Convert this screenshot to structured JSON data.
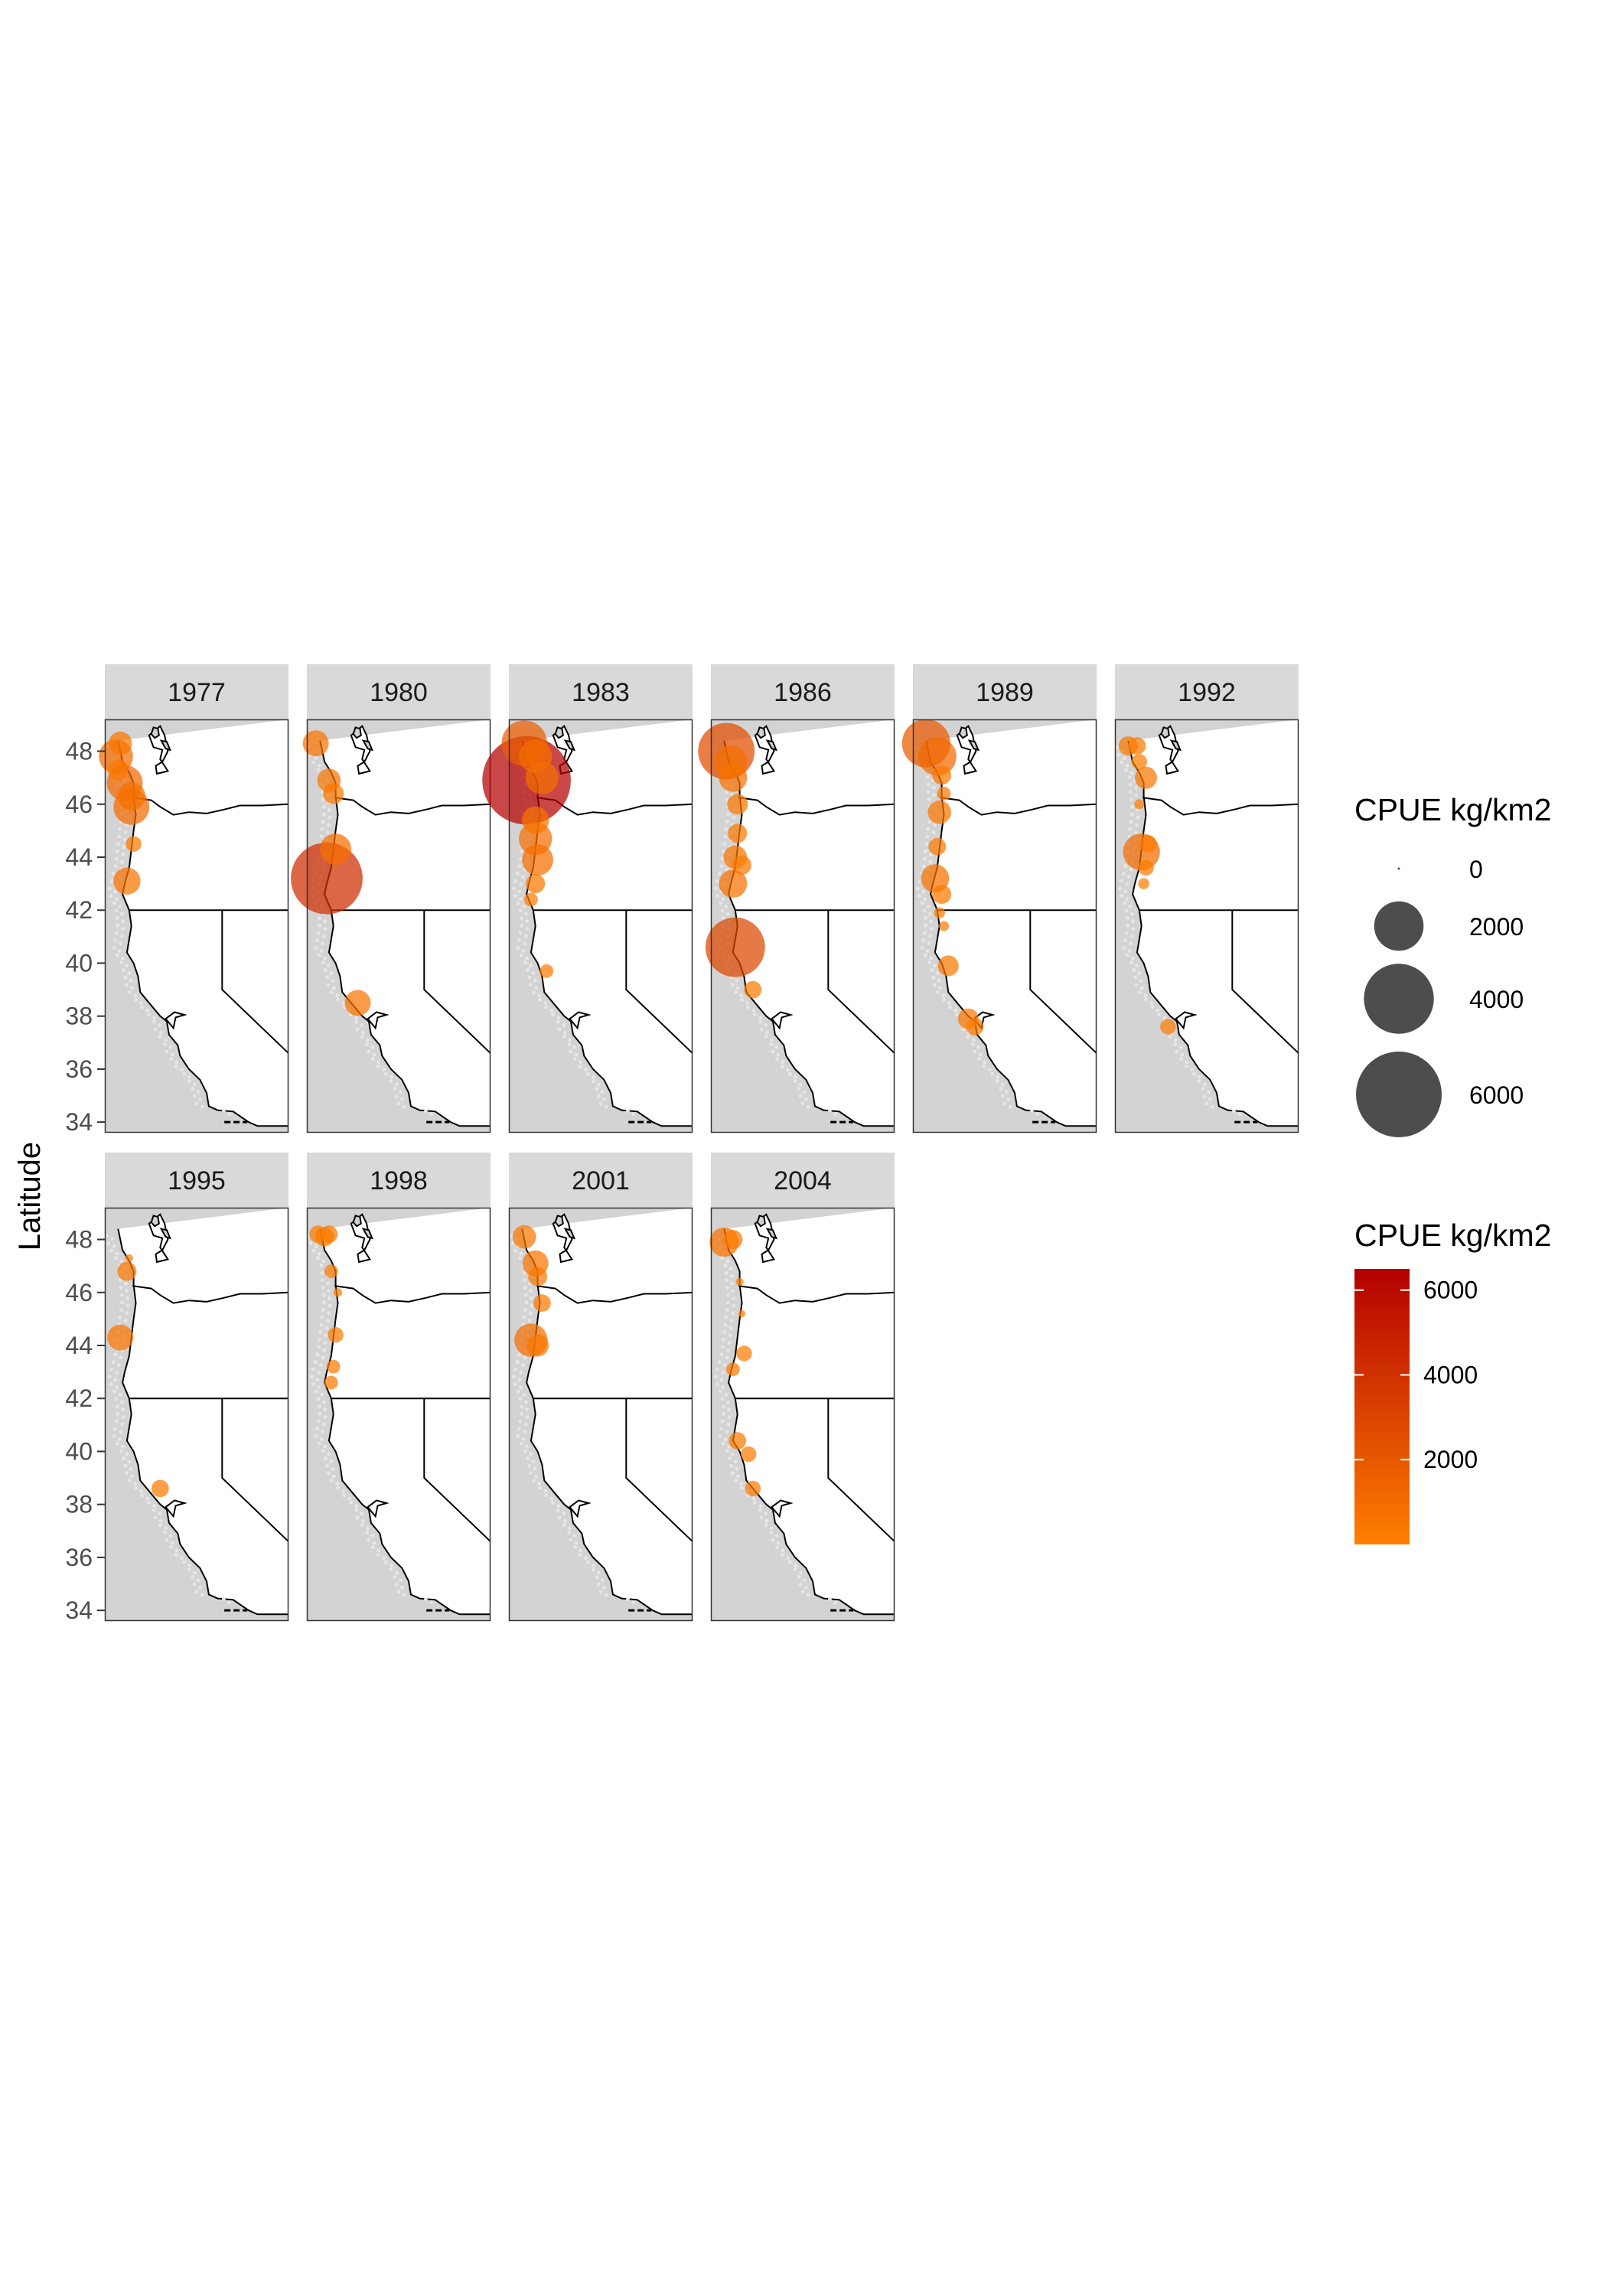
{
  "chart_data": {
    "type": "scatter",
    "subtype": "faceted bubble map",
    "ylabel": "Latitude",
    "xlabel": "",
    "ylim": [
      33.6,
      49.2
    ],
    "yticks": [
      34,
      36,
      38,
      40,
      42,
      44,
      46,
      48
    ],
    "size_legend": {
      "title": "CPUE kg/km2",
      "breaks": [
        0,
        2000,
        4000,
        6000
      ]
    },
    "color_legend": {
      "title": "CPUE kg/km2",
      "breaks": [
        2000,
        4000,
        6000
      ],
      "range": [
        0,
        6500
      ],
      "low_color": "#ff7f00",
      "high_color": "#b30000"
    },
    "panels": [
      {
        "year": "1977",
        "points": [
          {
            "lon": -124.6,
            "lat": 48.3,
            "cpue": 450
          },
          {
            "lon": -124.8,
            "lat": 47.8,
            "cpue": 950
          },
          {
            "lon": -124.7,
            "lat": 47.3,
            "cpue": 350
          },
          {
            "lon": -124.4,
            "lat": 46.8,
            "cpue": 1050
          },
          {
            "lon": -124.1,
            "lat": 46.3,
            "cpue": 650
          },
          {
            "lon": -124.1,
            "lat": 45.9,
            "cpue": 1050
          },
          {
            "lon": -124.0,
            "lat": 44.5,
            "cpue": 200
          },
          {
            "lon": -124.3,
            "lat": 43.1,
            "cpue": 600
          }
        ]
      },
      {
        "year": "1980",
        "points": [
          {
            "lon": -124.9,
            "lat": 48.3,
            "cpue": 550
          },
          {
            "lon": -124.3,
            "lat": 46.9,
            "cpue": 450
          },
          {
            "lon": -124.1,
            "lat": 46.4,
            "cpue": 350
          },
          {
            "lon": -124.0,
            "lat": 44.3,
            "cpue": 800
          },
          {
            "lon": -124.4,
            "lat": 43.2,
            "cpue": 4200
          },
          {
            "lon": -123.0,
            "lat": 38.5,
            "cpue": 550
          }
        ]
      },
      {
        "year": "1983",
        "points": [
          {
            "lon": -124.6,
            "lat": 48.3,
            "cpue": 1700
          },
          {
            "lon": -124.1,
            "lat": 47.8,
            "cpue": 900
          },
          {
            "lon": -124.5,
            "lat": 46.9,
            "cpue": 6400
          },
          {
            "lon": -123.8,
            "lat": 47.0,
            "cpue": 900
          },
          {
            "lon": -124.1,
            "lat": 45.4,
            "cpue": 600
          },
          {
            "lon": -124.1,
            "lat": 44.7,
            "cpue": 900
          },
          {
            "lon": -124.0,
            "lat": 43.9,
            "cpue": 800
          },
          {
            "lon": -124.1,
            "lat": 43.0,
            "cpue": 300
          },
          {
            "lon": -124.3,
            "lat": 42.4,
            "cpue": 150
          },
          {
            "lon": -123.6,
            "lat": 39.7,
            "cpue": 150
          }
        ]
      },
      {
        "year": "1986",
        "points": [
          {
            "lon": -124.6,
            "lat": 48.0,
            "cpue": 2600
          },
          {
            "lon": -124.4,
            "lat": 47.6,
            "cpue": 900
          },
          {
            "lon": -124.3,
            "lat": 47.0,
            "cpue": 650
          },
          {
            "lon": -124.1,
            "lat": 46.0,
            "cpue": 350
          },
          {
            "lon": -124.1,
            "lat": 44.9,
            "cpue": 300
          },
          {
            "lon": -124.2,
            "lat": 44.0,
            "cpue": 450
          },
          {
            "lon": -123.9,
            "lat": 43.7,
            "cpue": 300
          },
          {
            "lon": -124.3,
            "lat": 43.0,
            "cpue": 650
          },
          {
            "lon": -124.2,
            "lat": 40.6,
            "cpue": 2900
          },
          {
            "lon": -123.4,
            "lat": 39.0,
            "cpue": 250
          }
        ]
      },
      {
        "year": "1989",
        "points": [
          {
            "lon": -124.7,
            "lat": 48.3,
            "cpue": 1900
          },
          {
            "lon": -124.2,
            "lat": 47.8,
            "cpue": 1200
          },
          {
            "lon": -124.0,
            "lat": 47.1,
            "cpue": 300
          },
          {
            "lon": -123.9,
            "lat": 46.4,
            "cpue": 150
          },
          {
            "lon": -124.1,
            "lat": 45.7,
            "cpue": 450
          },
          {
            "lon": -124.2,
            "lat": 44.4,
            "cpue": 250
          },
          {
            "lon": -124.3,
            "lat": 43.2,
            "cpue": 650
          },
          {
            "lon": -124.0,
            "lat": 42.6,
            "cpue": 300
          },
          {
            "lon": -124.1,
            "lat": 41.9,
            "cpue": 100
          },
          {
            "lon": -123.9,
            "lat": 41.4,
            "cpue": 80
          },
          {
            "lon": -123.7,
            "lat": 39.9,
            "cpue": 350
          },
          {
            "lon": -122.8,
            "lat": 37.9,
            "cpue": 350
          },
          {
            "lon": -122.5,
            "lat": 37.6,
            "cpue": 250
          }
        ]
      },
      {
        "year": "1992",
        "points": [
          {
            "lon": -124.7,
            "lat": 48.2,
            "cpue": 300
          },
          {
            "lon": -124.3,
            "lat": 48.2,
            "cpue": 250
          },
          {
            "lon": -124.2,
            "lat": 47.6,
            "cpue": 200
          },
          {
            "lon": -123.9,
            "lat": 47.0,
            "cpue": 400
          },
          {
            "lon": -124.2,
            "lat": 46.0,
            "cpue": 80
          },
          {
            "lon": -124.1,
            "lat": 44.2,
            "cpue": 1100
          },
          {
            "lon": -123.8,
            "lat": 44.5,
            "cpue": 250
          },
          {
            "lon": -123.9,
            "lat": 43.6,
            "cpue": 200
          },
          {
            "lon": -124.0,
            "lat": 43.0,
            "cpue": 100
          },
          {
            "lon": -122.9,
            "lat": 37.6,
            "cpue": 200
          }
        ]
      },
      {
        "year": "1995",
        "points": [
          {
            "lon": -124.2,
            "lat": 47.3,
            "cpue": 50
          },
          {
            "lon": -124.3,
            "lat": 46.8,
            "cpue": 300
          },
          {
            "lon": -124.6,
            "lat": 44.3,
            "cpue": 550
          },
          {
            "lon": -122.8,
            "lat": 38.6,
            "cpue": 250
          }
        ]
      },
      {
        "year": "1998",
        "points": [
          {
            "lon": -124.8,
            "lat": 48.2,
            "cpue": 250
          },
          {
            "lon": -124.5,
            "lat": 48.1,
            "cpue": 300
          },
          {
            "lon": -124.3,
            "lat": 48.2,
            "cpue": 250
          },
          {
            "lon": -124.2,
            "lat": 46.8,
            "cpue": 150
          },
          {
            "lon": -123.9,
            "lat": 46.0,
            "cpue": 60
          },
          {
            "lon": -124.0,
            "lat": 44.4,
            "cpue": 200
          },
          {
            "lon": -124.1,
            "lat": 43.2,
            "cpue": 150
          },
          {
            "lon": -124.2,
            "lat": 42.6,
            "cpue": 150
          }
        ]
      },
      {
        "year": "2001",
        "points": [
          {
            "lon": -124.6,
            "lat": 48.1,
            "cpue": 450
          },
          {
            "lon": -124.1,
            "lat": 47.1,
            "cpue": 550
          },
          {
            "lon": -124.0,
            "lat": 46.6,
            "cpue": 300
          },
          {
            "lon": -123.8,
            "lat": 45.6,
            "cpue": 250
          },
          {
            "lon": -124.3,
            "lat": 44.2,
            "cpue": 900
          },
          {
            "lon": -124.0,
            "lat": 44.0,
            "cpue": 400
          }
        ]
      },
      {
        "year": "2004",
        "points": [
          {
            "lon": -124.7,
            "lat": 47.9,
            "cpue": 700
          },
          {
            "lon": -124.3,
            "lat": 48.0,
            "cpue": 300
          },
          {
            "lon": -124.0,
            "lat": 46.4,
            "cpue": 50
          },
          {
            "lon": -123.9,
            "lat": 45.2,
            "cpue": 40
          },
          {
            "lon": -123.8,
            "lat": 43.7,
            "cpue": 200
          },
          {
            "lon": -124.3,
            "lat": 43.1,
            "cpue": 150
          },
          {
            "lon": -124.1,
            "lat": 40.4,
            "cpue": 250
          },
          {
            "lon": -123.6,
            "lat": 39.9,
            "cpue": 200
          },
          {
            "lon": -123.4,
            "lat": 38.6,
            "cpue": 200
          }
        ]
      }
    ]
  }
}
